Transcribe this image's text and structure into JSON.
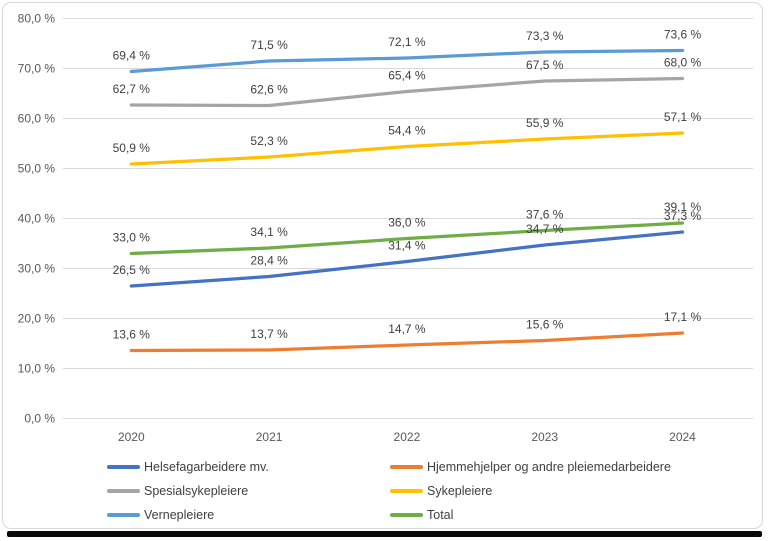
{
  "chart_data": {
    "type": "line",
    "title": "",
    "x_tick_labels": [
      "2020",
      "2021",
      "2022",
      "2023",
      "2024"
    ],
    "y_axis": {
      "min": 0,
      "max": 80,
      "step": 10,
      "tick_labels": [
        "0,0 %",
        "10,0 %",
        "20,0 %",
        "30,0 %",
        "40,0 %",
        "50,0 %",
        "60,0 %",
        "70,0 %",
        "80,0 %"
      ]
    },
    "grid": true,
    "legend_position": "bottom",
    "data_labels": "above each point, comma decimal with space before %, e.g. 69,4 %",
    "series": [
      {
        "name": "Helsefagarbeidere mv.",
        "color": "#4472C4",
        "values": [
          26.5,
          28.4,
          31.4,
          34.7,
          37.3
        ]
      },
      {
        "name": "Hjemmehjelper og andre pleiemedarbeidere",
        "color": "#ED7D31",
        "values": [
          13.6,
          13.7,
          14.7,
          15.6,
          17.1
        ]
      },
      {
        "name": "Spesialsykepleiere",
        "color": "#A5A5A5",
        "values": [
          62.7,
          62.6,
          65.4,
          67.5,
          68.0
        ]
      },
      {
        "name": "Sykepleiere",
        "color": "#FFC000",
        "values": [
          50.9,
          52.3,
          54.4,
          55.9,
          57.1
        ]
      },
      {
        "name": "Vernepleiere",
        "color": "#5B9BD5",
        "values": [
          69.4,
          71.5,
          72.1,
          73.3,
          73.6
        ]
      },
      {
        "name": "Total",
        "color": "#70AD47",
        "values": [
          33.0,
          34.1,
          36.0,
          37.6,
          39.1
        ]
      }
    ],
    "legend_order": [
      "Helsefagarbeidere mv.",
      "Hjemmehjelper og andre pleiemedarbeidere",
      "Spesialsykepleiere",
      "Sykepleiere",
      "Vernepleiere",
      "Total"
    ]
  },
  "colors": {
    "gridline": "#d9d9d9",
    "axis_text": "#595959",
    "data_label_text": "#404040",
    "frame_border": "#d8d8d8",
    "bottom_bar": "#0a0a0a",
    "background": "#ffffff"
  }
}
